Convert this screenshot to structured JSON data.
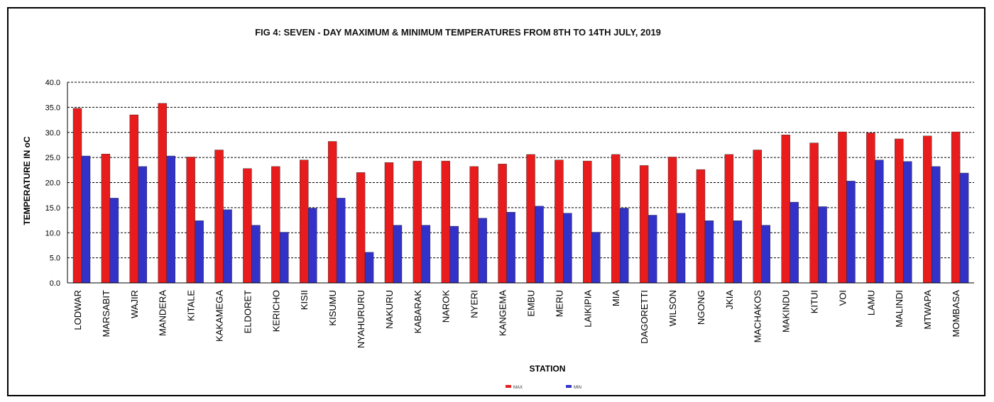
{
  "chart_data": {
    "type": "bar",
    "title": "FIG 4: SEVEN - DAY MAXIMUM  & MINIMUM  TEMPERATURES  FROM 8TH TO 14TH JULY, 2019",
    "xlabel": "STATION",
    "ylabel": "TEMPERATURE  IN oC",
    "ylim": [
      0,
      40
    ],
    "yticks": [
      "0.0",
      "5.0",
      "10.0",
      "15.0",
      "20.0",
      "25.0",
      "30.0",
      "35.0",
      "40.0"
    ],
    "grid": true,
    "legend_position": "bottom",
    "categories": [
      "LODWAR",
      "MARSABIT",
      "WAJIR",
      "MANDERA",
      "KITALE",
      "KAKAMEGA",
      "ELDORET",
      "KERICHO",
      "KISII",
      "KISUMU",
      "NYAHURURU",
      "NAKURU",
      "KABARAK",
      "NAROK",
      "NYERI",
      "KANGEMA",
      "EMBU",
      "MERU",
      "LAIKIPIA",
      "MIA",
      "DAGORETTI",
      "WILSON",
      "NGONG",
      "JKIA",
      "MACHAKOS",
      "MAKINDU",
      "KITUI",
      "VOI",
      "LAMU",
      "MALINDI",
      "MTWAPA",
      "MOMBASA"
    ],
    "series": [
      {
        "name": "MAX",
        "color": "#e81c1c",
        "values": [
          34.8,
          25.7,
          33.5,
          35.8,
          25.1,
          26.5,
          22.8,
          23.2,
          24.5,
          28.2,
          22.0,
          24.0,
          24.3,
          24.3,
          23.2,
          23.7,
          25.6,
          24.5,
          24.3,
          25.6,
          23.4,
          25.1,
          22.6,
          25.6,
          26.5,
          29.5,
          27.9,
          30.1,
          29.9,
          28.7,
          29.3,
          30.1
        ]
      },
      {
        "name": "MIN",
        "color": "#3232c8",
        "values": [
          25.3,
          16.9,
          23.2,
          25.3,
          12.4,
          14.6,
          11.5,
          10.1,
          14.9,
          16.9,
          6.1,
          11.5,
          11.5,
          11.3,
          12.9,
          14.1,
          15.3,
          13.9,
          10.1,
          14.9,
          13.5,
          13.9,
          12.4,
          12.4,
          11.5,
          16.1,
          15.2,
          20.3,
          24.5,
          24.2,
          23.2,
          21.9
        ]
      }
    ]
  }
}
